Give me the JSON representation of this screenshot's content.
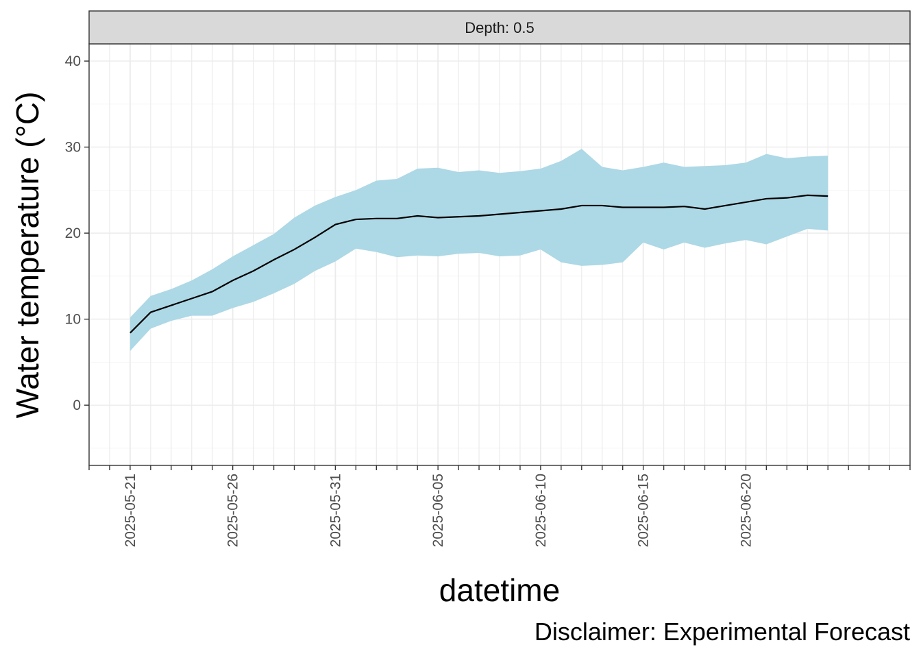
{
  "chart_data": {
    "type": "line",
    "facet_label": "Depth: 0.5",
    "xlabel": "datetime",
    "ylabel": "Water temperature (°C)",
    "caption": "Disclaimer: Experimental Forecast",
    "ylim": [
      -7,
      42
    ],
    "y_ticks": [
      0,
      10,
      20,
      30,
      40
    ],
    "x_range": [
      "2025-05-19",
      "2025-06-28"
    ],
    "x_tick_labels": [
      "2025-05-21",
      "2025-05-26",
      "2025-05-31",
      "2025-06-05",
      "2025-06-10",
      "2025-06-15",
      "2025-06-20"
    ],
    "grid": true,
    "colors": {
      "ribbon": "#add8e6",
      "line": "#000000",
      "strip": "#d9d9d9",
      "grid": "#ebebeb"
    },
    "series": [
      {
        "x": [
          "2025-05-21",
          "2025-05-22",
          "2025-05-23",
          "2025-05-24",
          "2025-05-25",
          "2025-05-26",
          "2025-05-27",
          "2025-05-28",
          "2025-05-29",
          "2025-05-30",
          "2025-05-31",
          "2025-06-01",
          "2025-06-02",
          "2025-06-03",
          "2025-06-04",
          "2025-06-05",
          "2025-06-06",
          "2025-06-07",
          "2025-06-08",
          "2025-06-09",
          "2025-06-10",
          "2025-06-11",
          "2025-06-12",
          "2025-06-13",
          "2025-06-14",
          "2025-06-15",
          "2025-06-16",
          "2025-06-17",
          "2025-06-18",
          "2025-06-19",
          "2025-06-20",
          "2025-06-21",
          "2025-06-22",
          "2025-06-23",
          "2025-06-24"
        ],
        "mean": [
          8.4,
          10.8,
          11.6,
          12.4,
          13.2,
          14.5,
          15.6,
          16.9,
          18.1,
          19.5,
          21.0,
          21.6,
          21.7,
          21.7,
          22.0,
          21.8,
          21.9,
          22.0,
          22.2,
          22.4,
          22.6,
          22.8,
          23.2,
          23.2,
          23.0,
          23.0,
          23.0,
          23.1,
          22.8,
          23.2,
          23.6,
          24.0,
          24.1,
          24.4,
          24.3
        ],
        "lower": [
          6.3,
          8.9,
          9.8,
          10.4,
          10.4,
          11.3,
          12.0,
          13.0,
          14.1,
          15.6,
          16.7,
          18.2,
          17.8,
          17.2,
          17.4,
          17.3,
          17.6,
          17.7,
          17.3,
          17.4,
          18.1,
          16.6,
          16.2,
          16.3,
          16.6,
          18.9,
          18.1,
          18.9,
          18.3,
          18.8,
          19.2,
          18.7,
          19.6,
          20.5,
          20.3
        ],
        "upper": [
          10.2,
          12.7,
          13.5,
          14.5,
          15.8,
          17.3,
          18.6,
          19.9,
          21.8,
          23.2,
          24.2,
          25.0,
          26.1,
          26.3,
          27.5,
          27.6,
          27.1,
          27.3,
          27.0,
          27.2,
          27.5,
          28.4,
          29.8,
          27.7,
          27.3,
          27.7,
          28.2,
          27.7,
          27.8,
          27.9,
          28.2,
          29.2,
          28.7,
          28.9,
          29.0
        ]
      }
    ]
  }
}
